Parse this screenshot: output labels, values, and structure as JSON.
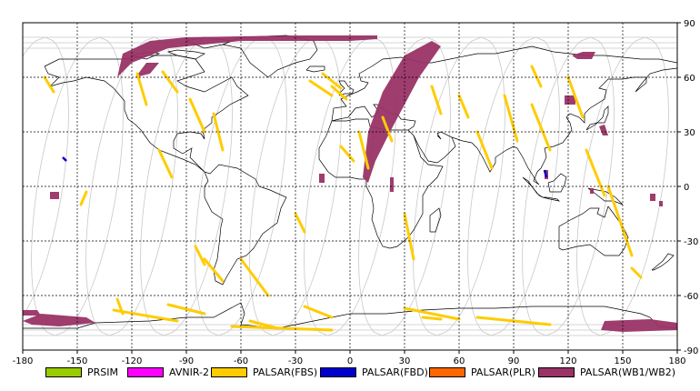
{
  "map": {
    "lon_range": [
      -180,
      180
    ],
    "lat_range": [
      -90,
      90
    ],
    "lon_ticks": [
      "-180",
      "-150",
      "-120",
      "-90",
      "-60",
      "-30",
      "0",
      "30",
      "60",
      "90",
      "120",
      "150",
      "180"
    ],
    "lat_ticks": [
      "90",
      "60",
      "30",
      "0",
      "-30",
      "-60",
      "-90"
    ],
    "grid": "dashed every 30 degrees",
    "colors": {
      "orbit_lines": "#c8c8c8",
      "coastline": "#000000",
      "grid": "#000000",
      "background": "#ffffff"
    }
  },
  "legend": {
    "items": [
      {
        "label": "PRSIM",
        "color": "#99cc00"
      },
      {
        "label": "AVNIR-2",
        "color": "#ff00ff"
      },
      {
        "label": "PALSAR(FBS)",
        "color": "#ffcc00"
      },
      {
        "label": "PALSAR(FBD)",
        "color": "#0000cc"
      },
      {
        "label": "PALSAR(PLR)",
        "color": "#ff6600"
      },
      {
        "label": "PALSAR(WB1/WB2)",
        "color": "#993366"
      }
    ]
  }
}
